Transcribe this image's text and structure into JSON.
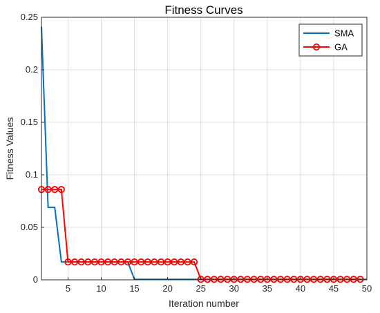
{
  "chart_data": {
    "type": "line",
    "title": "Fitness Curves",
    "xlabel": "Iteration number",
    "ylabel": "Fitness Values",
    "xlim": [
      1,
      50
    ],
    "ylim": [
      0,
      0.25
    ],
    "xticks": [
      5,
      10,
      15,
      20,
      25,
      30,
      35,
      40,
      45,
      50
    ],
    "yticks": [
      0,
      0.05,
      0.1,
      0.15,
      0.2,
      0.25
    ],
    "ytick_labels": [
      "0",
      "0.05",
      "0.1",
      "0.15",
      "0.2",
      "0.25"
    ],
    "grid": true,
    "legend_position": "top-right",
    "series": [
      {
        "name": "SMA",
        "color": "#0072BD",
        "marker": "none",
        "x": [
          1,
          2,
          3,
          4,
          5,
          6,
          7,
          8,
          9,
          10,
          11,
          12,
          13,
          14,
          15,
          16,
          17,
          18,
          19,
          20,
          21,
          22,
          23,
          24,
          25,
          26,
          27,
          28,
          29,
          30,
          31,
          32,
          33,
          34,
          35,
          36,
          37,
          38,
          39,
          40,
          41,
          42,
          43,
          44,
          45,
          46,
          47,
          48,
          49,
          50
        ],
        "values": [
          0.241,
          0.069,
          0.069,
          0.017,
          0.017,
          0.017,
          0.017,
          0.017,
          0.017,
          0.017,
          0.017,
          0.017,
          0.017,
          0.017,
          0.0005,
          0.0005,
          0.0005,
          0.0005,
          0.0005,
          0.0005,
          0.0005,
          0.0005,
          0.0005,
          0.0005,
          0.0005,
          0.0005,
          0.0005,
          0.0005,
          0.0005,
          0.0005,
          0.0005,
          0.0005,
          0.0005,
          0.0005,
          0.0005,
          0.0005,
          0.0005,
          0.0005,
          0.0005,
          0.0005,
          0.0005,
          0.0005,
          0.0005,
          0.0005,
          0.0005,
          0.0005,
          0.0005,
          0.0005,
          0.0005,
          0.0005
        ]
      },
      {
        "name": "GA",
        "color": "#FF0000",
        "marker": "circle",
        "x": [
          1,
          2,
          3,
          4,
          5,
          6,
          7,
          8,
          9,
          10,
          11,
          12,
          13,
          14,
          15,
          16,
          17,
          18,
          19,
          20,
          21,
          22,
          23,
          24,
          25,
          26,
          27,
          28,
          29,
          30,
          31,
          32,
          33,
          34,
          35,
          36,
          37,
          38,
          39,
          40,
          41,
          42,
          43,
          44,
          45,
          46,
          47,
          48,
          49
        ],
        "values": [
          0.086,
          0.086,
          0.086,
          0.086,
          0.017,
          0.017,
          0.017,
          0.017,
          0.017,
          0.017,
          0.017,
          0.017,
          0.017,
          0.017,
          0.017,
          0.017,
          0.017,
          0.017,
          0.017,
          0.017,
          0.017,
          0.017,
          0.017,
          0.017,
          0.0005,
          0.0005,
          0.0005,
          0.0005,
          0.0005,
          0.0005,
          0.0005,
          0.0005,
          0.0005,
          0.0005,
          0.0005,
          0.0005,
          0.0005,
          0.0005,
          0.0005,
          0.0005,
          0.0005,
          0.0005,
          0.0005,
          0.0005,
          0.0005,
          0.0005,
          0.0005,
          0.0005,
          0.0005
        ]
      }
    ]
  }
}
